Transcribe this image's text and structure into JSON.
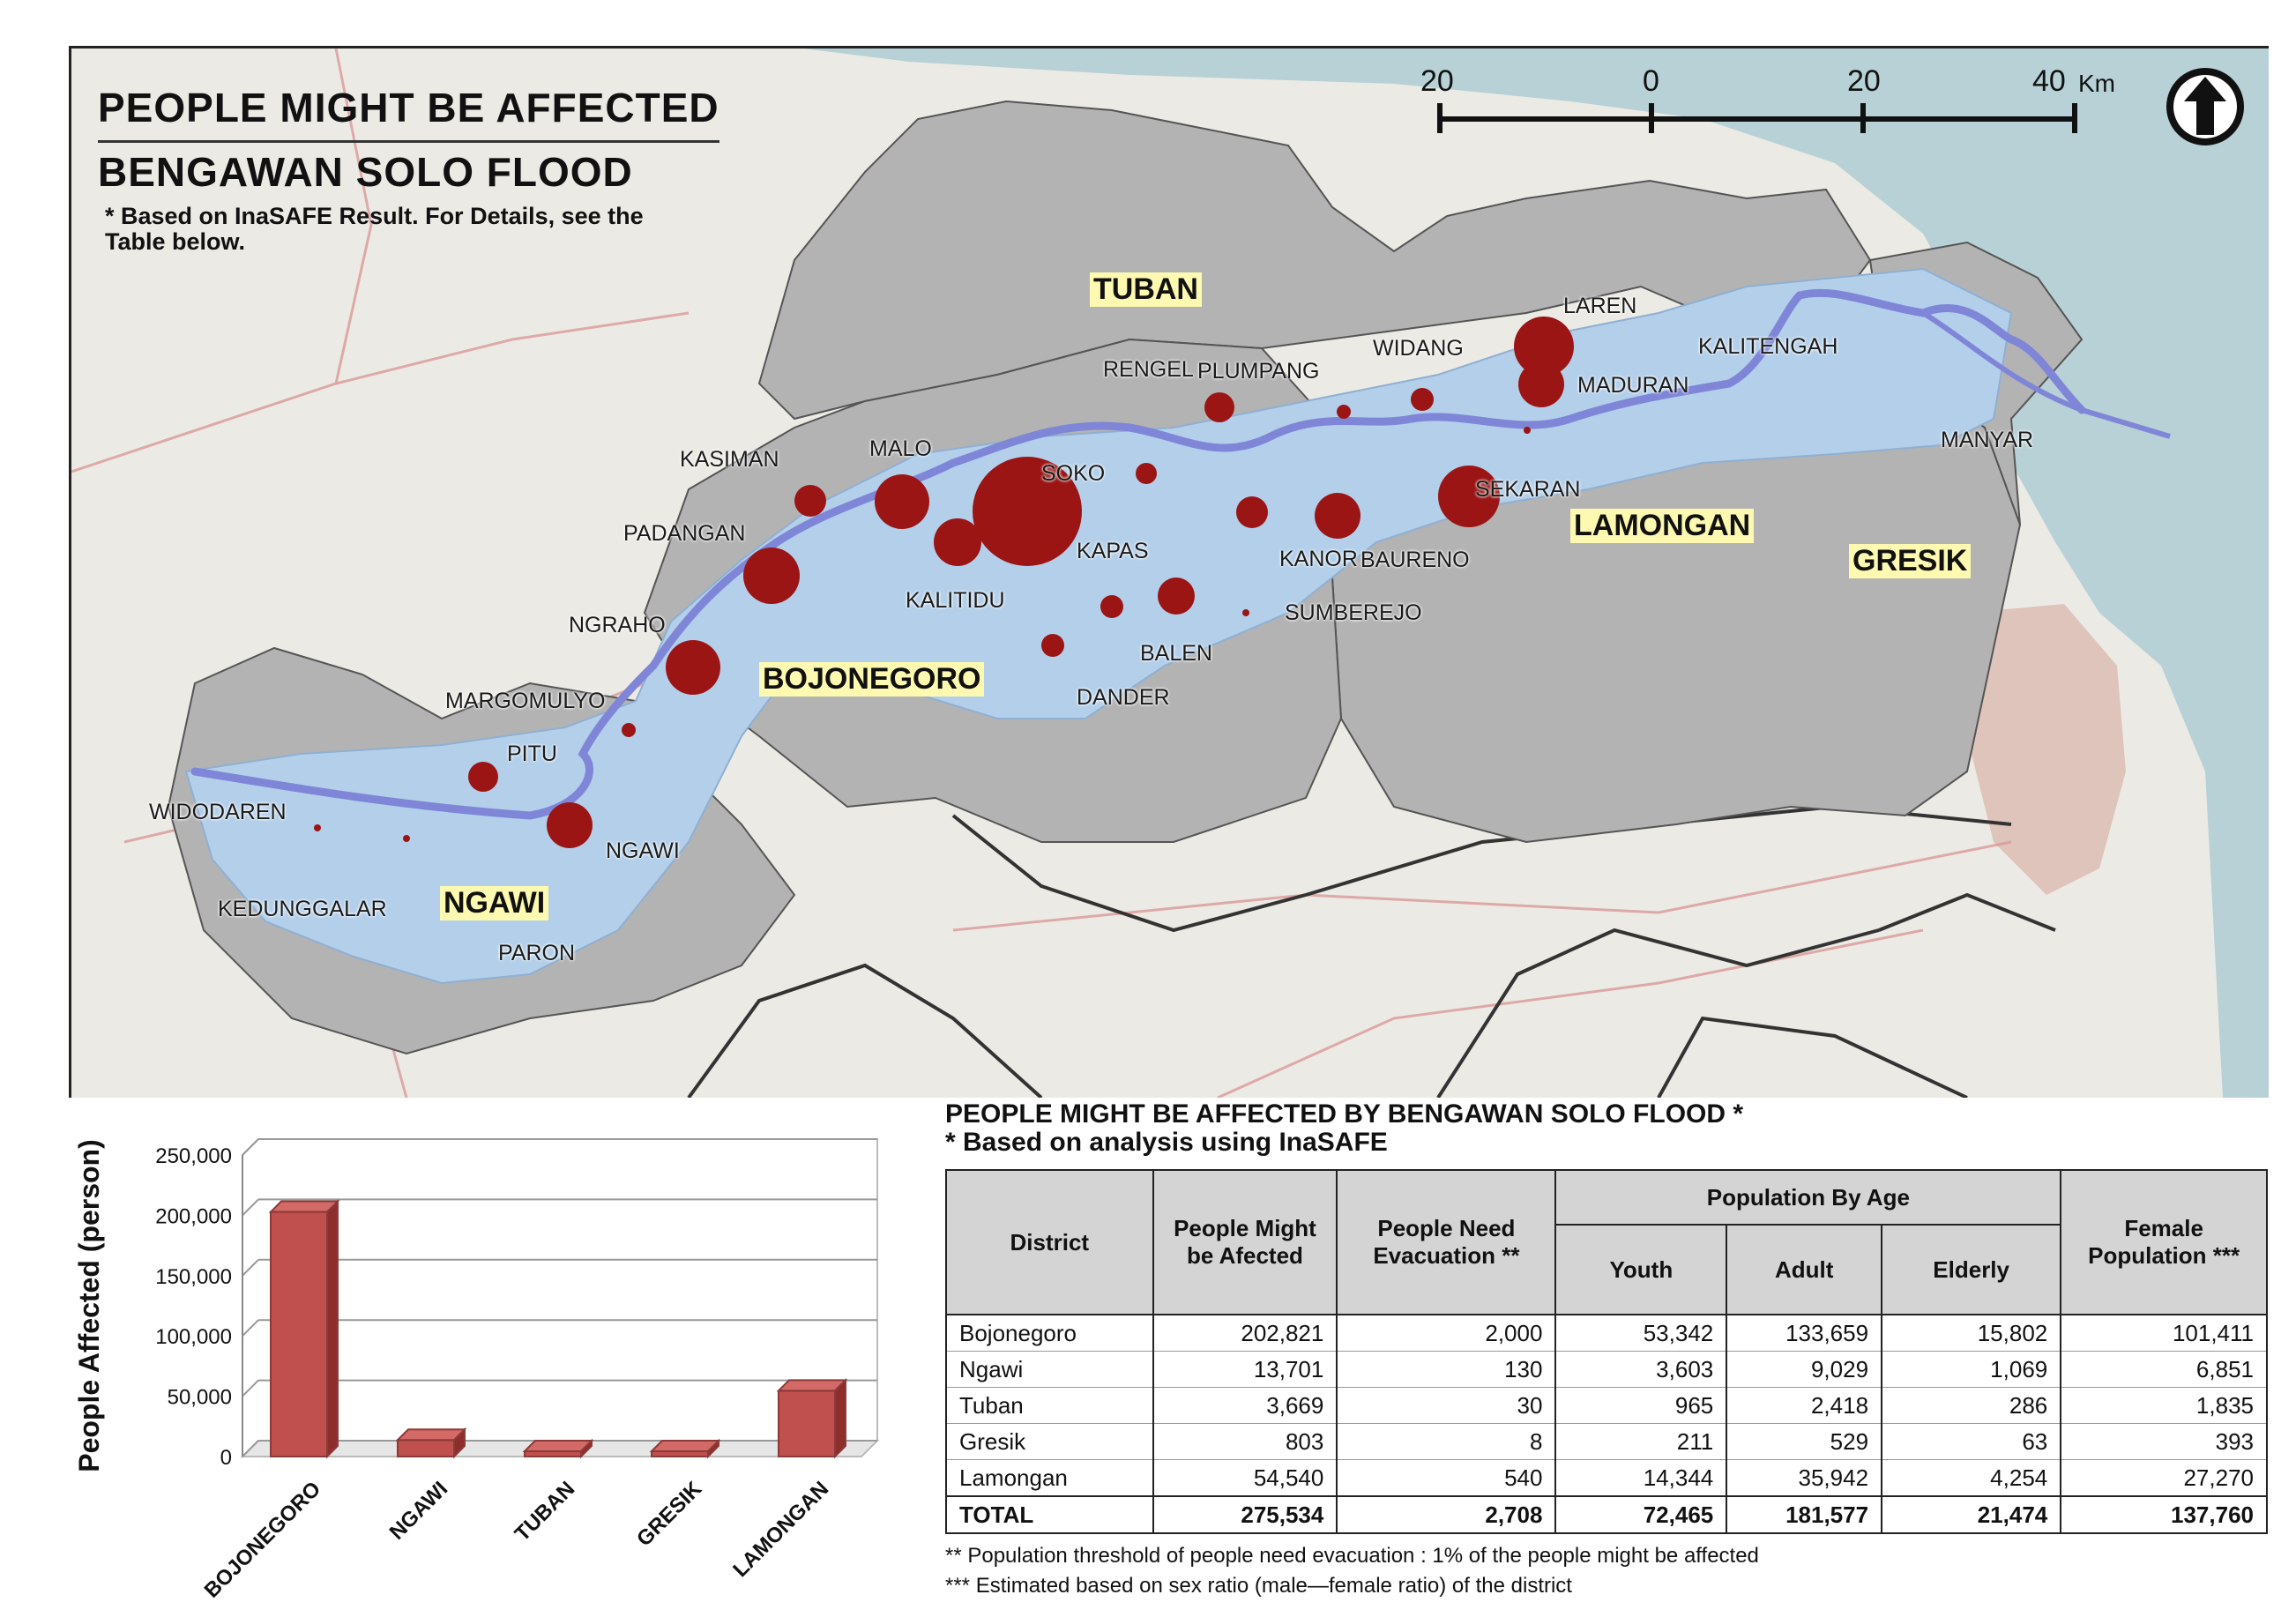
{
  "map": {
    "title_line1": "PEOPLE MIGHT BE AFFECTED",
    "title_line2": "BENGAWAN SOLO FLOOD",
    "note": "* Based on InaSAFE Result. For Details, see the Table below.",
    "scale": {
      "labels": [
        "20",
        "0",
        "20",
        "40"
      ],
      "unit": "Km"
    },
    "north_icon": "north-arrow-icon",
    "colors": {
      "sea": "#b7d1d6",
      "district_gray": "#b3b3b3",
      "flood_area": "#b3cfea",
      "river": "#7f86d8",
      "affected_dot": "#9b1515",
      "district_label_bg": "#fdf9b0"
    },
    "district_labels": [
      "TUBAN",
      "BOJONEGORO",
      "LAMONGAN",
      "GRESIK",
      "NGAWI"
    ],
    "places": [
      "LAREN",
      "KALITENGAH",
      "WIDANG",
      "MADURAN",
      "RENGEL",
      "PLUMPANG",
      "MANYAR",
      "KASIMAN",
      "MALO",
      "SOKO",
      "SEKARAN",
      "PADANGAN",
      "KAPAS",
      "KANOR",
      "BAURENO",
      "KALITIDU",
      "SUMBEREJO",
      "NGRAHO",
      "BALEN",
      "DANDER",
      "MARGOMULYO",
      "PITU",
      "WIDODAREN",
      "NGAWI",
      "KEDUNGGALAR",
      "PARON"
    ]
  },
  "chart_data": {
    "type": "bar",
    "categories": [
      "BOJONEGORO",
      "NGAWI",
      "TUBAN",
      "GRESIK",
      "LAMONGAN"
    ],
    "values": [
      202821,
      13701,
      3669,
      803,
      54540
    ],
    "ylabel": "People Affected (person)",
    "ylim": [
      0,
      250000
    ],
    "yticks": [
      "250,000",
      "200,000",
      "150,000",
      "100,000",
      "50,000",
      "0"
    ],
    "grid": true,
    "bar_color": "#c0504d"
  },
  "table": {
    "title": "PEOPLE MIGHT BE AFFECTED BY BENGAWAN SOLO FLOOD *",
    "subtitle": "* Based on analysis using InaSAFE",
    "headers": {
      "district": "District",
      "affected": "People Might be Afected",
      "evacuation": "People Need Evacuation **",
      "by_age": "Population By Age",
      "youth": "Youth",
      "adult": "Adult",
      "elderly": "Elderly",
      "female": "Female Population ***"
    },
    "rows": [
      {
        "district": "Bojonegoro",
        "affected": "202,821",
        "evacuation": "2,000",
        "youth": "53,342",
        "adult": "133,659",
        "elderly": "15,802",
        "female": "101,411"
      },
      {
        "district": "Ngawi",
        "affected": "13,701",
        "evacuation": "130",
        "youth": "3,603",
        "adult": "9,029",
        "elderly": "1,069",
        "female": "6,851"
      },
      {
        "district": "Tuban",
        "affected": "3,669",
        "evacuation": "30",
        "youth": "965",
        "adult": "2,418",
        "elderly": "286",
        "female": "1,835"
      },
      {
        "district": "Gresik",
        "affected": "803",
        "evacuation": "8",
        "youth": "211",
        "adult": "529",
        "elderly": "63",
        "female": "393"
      },
      {
        "district": "Lamongan",
        "affected": "54,540",
        "evacuation": "540",
        "youth": "14,344",
        "adult": "35,942",
        "elderly": "4,254",
        "female": "27,270"
      }
    ],
    "total": {
      "district": "TOTAL",
      "affected": "275,534",
      "evacuation": "2,708",
      "youth": "72,465",
      "adult": "181,577",
      "elderly": "21,474",
      "female": "137,760"
    },
    "footnotes": [
      "** Population threshold of people need evacuation : 1% of the people might be affected",
      "*** Estimated based on sex ratio (male—female ratio) of the district"
    ]
  }
}
